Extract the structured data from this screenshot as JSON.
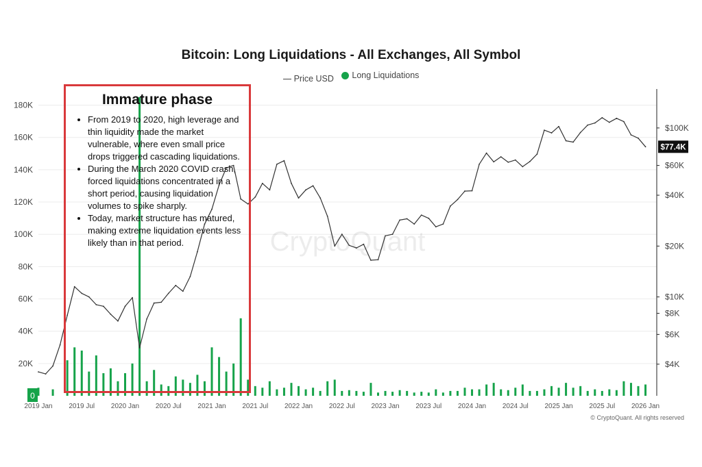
{
  "chart_data": {
    "type": "line",
    "title": "Bitcoin: Long Liquidations - All Exchanges, All Symbol",
    "legend": [
      {
        "name": "Price USD",
        "style": "line",
        "color": "#333333"
      },
      {
        "name": "Long Liquidations",
        "style": "dot",
        "color": "#16a34a"
      }
    ],
    "x_ticks": [
      "2019 Jan",
      "2019 Jul",
      "2020 Jan",
      "2020 Jul",
      "2021 Jan",
      "2021 Jul",
      "2022 Jan",
      "2022 Jul",
      "2023 Jan",
      "2023 Jul",
      "2024 Jan",
      "2024 Jul",
      "2025 Jan",
      "2025 Jul",
      "2026 Jan"
    ],
    "left_axis": {
      "label": "Long Liquidations",
      "ticks": [
        "0",
        "20K",
        "40K",
        "60K",
        "80K",
        "100K",
        "120K",
        "140K",
        "160K",
        "180K"
      ],
      "ylim": [
        0,
        190000
      ]
    },
    "right_axis": {
      "label": "Price USD",
      "scale": "log",
      "ticks": [
        "$4K",
        "$6K",
        "$8K",
        "$10K",
        "$20K",
        "$40K",
        "$60K",
        "$100K"
      ],
      "tick_values": [
        4000,
        6000,
        8000,
        10000,
        20000,
        40000,
        60000,
        100000
      ],
      "ylim": [
        2600,
        170000
      ]
    },
    "current_price_label": "$77.4K",
    "series": [
      {
        "name": "Price USD",
        "points": [
          [
            "2019-01",
            3600
          ],
          [
            "2019-02",
            3500
          ],
          [
            "2019-03",
            3900
          ],
          [
            "2019-04",
            5200
          ],
          [
            "2019-05",
            7800
          ],
          [
            "2019-06",
            11500
          ],
          [
            "2019-07",
            10500
          ],
          [
            "2019-08",
            10000
          ],
          [
            "2019-09",
            9000
          ],
          [
            "2019-10",
            8800
          ],
          [
            "2019-11",
            7900
          ],
          [
            "2019-12",
            7200
          ],
          [
            "2020-01",
            8800
          ],
          [
            "2020-02",
            9900
          ],
          [
            "2020-03",
            5000
          ],
          [
            "2020-04",
            7400
          ],
          [
            "2020-05",
            9200
          ],
          [
            "2020-06",
            9300
          ],
          [
            "2020-07",
            10500
          ],
          [
            "2020-08",
            11700
          ],
          [
            "2020-09",
            10800
          ],
          [
            "2020-10",
            13200
          ],
          [
            "2020-11",
            18500
          ],
          [
            "2020-12",
            27000
          ],
          [
            "2021-01",
            33000
          ],
          [
            "2021-02",
            46000
          ],
          [
            "2021-03",
            58000
          ],
          [
            "2021-04",
            60000
          ],
          [
            "2021-05",
            38000
          ],
          [
            "2021-06",
            35500
          ],
          [
            "2021-07",
            39000
          ],
          [
            "2021-08",
            47000
          ],
          [
            "2021-09",
            43000
          ],
          [
            "2021-10",
            61000
          ],
          [
            "2021-11",
            64000
          ],
          [
            "2021-12",
            47000
          ],
          [
            "2022-01",
            38500
          ],
          [
            "2022-02",
            43000
          ],
          [
            "2022-03",
            45500
          ],
          [
            "2022-04",
            38500
          ],
          [
            "2022-05",
            30000
          ],
          [
            "2022-06",
            20000
          ],
          [
            "2022-07",
            23500
          ],
          [
            "2022-08",
            20200
          ],
          [
            "2022-09",
            19500
          ],
          [
            "2022-10",
            20500
          ],
          [
            "2022-11",
            16500
          ],
          [
            "2022-12",
            16600
          ],
          [
            "2023-01",
            23000
          ],
          [
            "2023-02",
            23500
          ],
          [
            "2023-03",
            28500
          ],
          [
            "2023-04",
            29000
          ],
          [
            "2023-05",
            27000
          ],
          [
            "2023-06",
            30500
          ],
          [
            "2023-07",
            29200
          ],
          [
            "2023-08",
            26000
          ],
          [
            "2023-09",
            27000
          ],
          [
            "2023-10",
            34500
          ],
          [
            "2023-11",
            37700
          ],
          [
            "2023-12",
            42300
          ],
          [
            "2024-01",
            42500
          ],
          [
            "2024-02",
            61000
          ],
          [
            "2024-03",
            71000
          ],
          [
            "2024-04",
            63000
          ],
          [
            "2024-05",
            67500
          ],
          [
            "2024-06",
            62700
          ],
          [
            "2024-07",
            64600
          ],
          [
            "2024-08",
            59000
          ],
          [
            "2024-09",
            63300
          ],
          [
            "2024-10",
            70000
          ],
          [
            "2024-11",
            97000
          ],
          [
            "2024-12",
            93500
          ],
          [
            "2025-01",
            102000
          ],
          [
            "2025-02",
            84000
          ],
          [
            "2025-03",
            82500
          ],
          [
            "2025-04",
            94000
          ],
          [
            "2025-05",
            104000
          ],
          [
            "2025-06",
            107000
          ],
          [
            "2025-07",
            115000
          ],
          [
            "2025-08",
            108000
          ],
          [
            "2025-09",
            114000
          ],
          [
            "2025-10",
            109000
          ],
          [
            "2025-11",
            91000
          ],
          [
            "2025-12",
            87000
          ],
          [
            "2026-01",
            77400
          ]
        ]
      },
      {
        "name": "Long Liquidations",
        "points": [
          [
            "2019-01",
            5000
          ],
          [
            "2019-03",
            4000
          ],
          [
            "2019-05",
            22000
          ],
          [
            "2019-06",
            30000
          ],
          [
            "2019-07",
            28000
          ],
          [
            "2019-08",
            15000
          ],
          [
            "2019-09",
            25000
          ],
          [
            "2019-10",
            14000
          ],
          [
            "2019-11",
            17000
          ],
          [
            "2019-12",
            9000
          ],
          [
            "2020-01",
            14000
          ],
          [
            "2020-02",
            20000
          ],
          [
            "2020-03",
            185000
          ],
          [
            "2020-04",
            9000
          ],
          [
            "2020-05",
            16000
          ],
          [
            "2020-06",
            7000
          ],
          [
            "2020-07",
            6000
          ],
          [
            "2020-08",
            12000
          ],
          [
            "2020-09",
            10000
          ],
          [
            "2020-10",
            8000
          ],
          [
            "2020-11",
            13000
          ],
          [
            "2020-12",
            9000
          ],
          [
            "2021-01",
            30000
          ],
          [
            "2021-02",
            24000
          ],
          [
            "2021-03",
            15000
          ],
          [
            "2021-04",
            20000
          ],
          [
            "2021-05",
            48000
          ],
          [
            "2021-06",
            10000
          ],
          [
            "2021-07",
            6000
          ],
          [
            "2021-08",
            5000
          ],
          [
            "2021-09",
            9000
          ],
          [
            "2021-10",
            4000
          ],
          [
            "2021-11",
            5000
          ],
          [
            "2021-12",
            8000
          ],
          [
            "2022-01",
            6000
          ],
          [
            "2022-02",
            4000
          ],
          [
            "2022-03",
            5000
          ],
          [
            "2022-04",
            3000
          ],
          [
            "2022-05",
            9000
          ],
          [
            "2022-06",
            10000
          ],
          [
            "2022-07",
            3000
          ],
          [
            "2022-08",
            3500
          ],
          [
            "2022-09",
            3000
          ],
          [
            "2022-10",
            2500
          ],
          [
            "2022-11",
            8000
          ],
          [
            "2022-12",
            2000
          ],
          [
            "2023-01",
            3000
          ],
          [
            "2023-02",
            2500
          ],
          [
            "2023-03",
            3500
          ],
          [
            "2023-04",
            3000
          ],
          [
            "2023-05",
            2000
          ],
          [
            "2023-06",
            2500
          ],
          [
            "2023-07",
            2000
          ],
          [
            "2023-08",
            4000
          ],
          [
            "2023-09",
            2000
          ],
          [
            "2023-10",
            3000
          ],
          [
            "2023-11",
            3000
          ],
          [
            "2023-12",
            5000
          ],
          [
            "2024-01",
            4000
          ],
          [
            "2024-02",
            4000
          ],
          [
            "2024-03",
            7000
          ],
          [
            "2024-04",
            8000
          ],
          [
            "2024-05",
            4000
          ],
          [
            "2024-06",
            3500
          ],
          [
            "2024-07",
            5000
          ],
          [
            "2024-08",
            7000
          ],
          [
            "2024-09",
            3000
          ],
          [
            "2024-10",
            3000
          ],
          [
            "2024-11",
            4000
          ],
          [
            "2024-12",
            6000
          ],
          [
            "2025-01",
            5000
          ],
          [
            "2025-02",
            8000
          ],
          [
            "2025-03",
            5000
          ],
          [
            "2025-04",
            6000
          ],
          [
            "2025-05",
            3000
          ],
          [
            "2025-06",
            4000
          ],
          [
            "2025-07",
            3000
          ],
          [
            "2025-08",
            4000
          ],
          [
            "2025-09",
            3500
          ],
          [
            "2025-10",
            9000
          ],
          [
            "2025-11",
            8000
          ],
          [
            "2025-12",
            6000
          ],
          [
            "2026-01",
            7000
          ]
        ]
      }
    ],
    "watermark": "CryptoQuant"
  },
  "annotation": {
    "title": "Immature phase",
    "bullets": [
      "From 2019 to 2020, high leverage and thin liquidity made the market vulnerable, where even small price drops triggered cascading liquidations.",
      "During the March 2020 COVID crash, forced liquidations concentrated in a short period, causing liquidation volumes to spike sharply.",
      "Today, market structure has matured, making extreme liquidation events less likely than in that period."
    ],
    "border_color": "#d9393b"
  },
  "copyright": "© CryptoQuant. All rights reserved"
}
